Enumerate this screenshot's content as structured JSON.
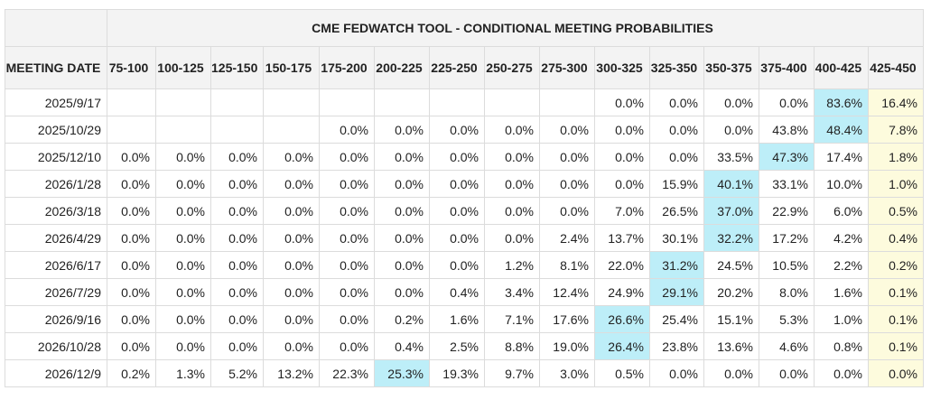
{
  "title": "CME FEDWATCH TOOL - CONDITIONAL MEETING PROBABILITIES",
  "date_header": "MEETING DATE",
  "columns": [
    "75-100",
    "100-125",
    "125-150",
    "150-175",
    "175-200",
    "200-225",
    "225-250",
    "250-275",
    "275-300",
    "300-325",
    "325-350",
    "350-375",
    "375-400",
    "400-425",
    "425-450"
  ],
  "colors": {
    "header_bg": "#f3f3f3",
    "border": "#dcdcdc",
    "current_range_bg": "#fdfbdd",
    "max_probability_bg": "#bdeef8"
  },
  "rows": [
    {
      "date": "2025/9/17",
      "max_col": 13,
      "values": [
        "",
        "",
        "",
        "",
        "",
        "",
        "",
        "",
        "",
        "0.0%",
        "0.0%",
        "0.0%",
        "0.0%",
        "83.6%",
        "16.4%"
      ]
    },
    {
      "date": "2025/10/29",
      "max_col": 13,
      "values": [
        "",
        "",
        "",
        "",
        "0.0%",
        "0.0%",
        "0.0%",
        "0.0%",
        "0.0%",
        "0.0%",
        "0.0%",
        "0.0%",
        "43.8%",
        "48.4%",
        "7.8%"
      ]
    },
    {
      "date": "2025/12/10",
      "max_col": 12,
      "values": [
        "0.0%",
        "0.0%",
        "0.0%",
        "0.0%",
        "0.0%",
        "0.0%",
        "0.0%",
        "0.0%",
        "0.0%",
        "0.0%",
        "0.0%",
        "33.5%",
        "47.3%",
        "17.4%",
        "1.8%"
      ]
    },
    {
      "date": "2026/1/28",
      "max_col": 11,
      "values": [
        "0.0%",
        "0.0%",
        "0.0%",
        "0.0%",
        "0.0%",
        "0.0%",
        "0.0%",
        "0.0%",
        "0.0%",
        "0.0%",
        "15.9%",
        "40.1%",
        "33.1%",
        "10.0%",
        "1.0%"
      ]
    },
    {
      "date": "2026/3/18",
      "max_col": 11,
      "values": [
        "0.0%",
        "0.0%",
        "0.0%",
        "0.0%",
        "0.0%",
        "0.0%",
        "0.0%",
        "0.0%",
        "0.0%",
        "7.0%",
        "26.5%",
        "37.0%",
        "22.9%",
        "6.0%",
        "0.5%"
      ]
    },
    {
      "date": "2026/4/29",
      "max_col": 11,
      "values": [
        "0.0%",
        "0.0%",
        "0.0%",
        "0.0%",
        "0.0%",
        "0.0%",
        "0.0%",
        "0.0%",
        "2.4%",
        "13.7%",
        "30.1%",
        "32.2%",
        "17.2%",
        "4.2%",
        "0.4%"
      ]
    },
    {
      "date": "2026/6/17",
      "max_col": 10,
      "values": [
        "0.0%",
        "0.0%",
        "0.0%",
        "0.0%",
        "0.0%",
        "0.0%",
        "0.0%",
        "1.2%",
        "8.1%",
        "22.0%",
        "31.2%",
        "24.5%",
        "10.5%",
        "2.2%",
        "0.2%"
      ]
    },
    {
      "date": "2026/7/29",
      "max_col": 10,
      "values": [
        "0.0%",
        "0.0%",
        "0.0%",
        "0.0%",
        "0.0%",
        "0.0%",
        "0.4%",
        "3.4%",
        "12.4%",
        "24.9%",
        "29.1%",
        "20.2%",
        "8.0%",
        "1.6%",
        "0.1%"
      ]
    },
    {
      "date": "2026/9/16",
      "max_col": 9,
      "values": [
        "0.0%",
        "0.0%",
        "0.0%",
        "0.0%",
        "0.0%",
        "0.2%",
        "1.6%",
        "7.1%",
        "17.6%",
        "26.6%",
        "25.4%",
        "15.1%",
        "5.3%",
        "1.0%",
        "0.1%"
      ]
    },
    {
      "date": "2026/10/28",
      "max_col": 9,
      "values": [
        "0.0%",
        "0.0%",
        "0.0%",
        "0.0%",
        "0.0%",
        "0.4%",
        "2.5%",
        "8.8%",
        "19.0%",
        "26.4%",
        "23.8%",
        "13.6%",
        "4.6%",
        "0.8%",
        "0.1%"
      ]
    },
    {
      "date": "2026/12/9",
      "max_col": 5,
      "values": [
        "0.2%",
        "1.3%",
        "5.2%",
        "13.2%",
        "22.3%",
        "25.3%",
        "19.3%",
        "9.7%",
        "3.0%",
        "0.5%",
        "0.0%",
        "0.0%",
        "0.0%",
        "0.0%",
        "0.0%"
      ]
    }
  ]
}
